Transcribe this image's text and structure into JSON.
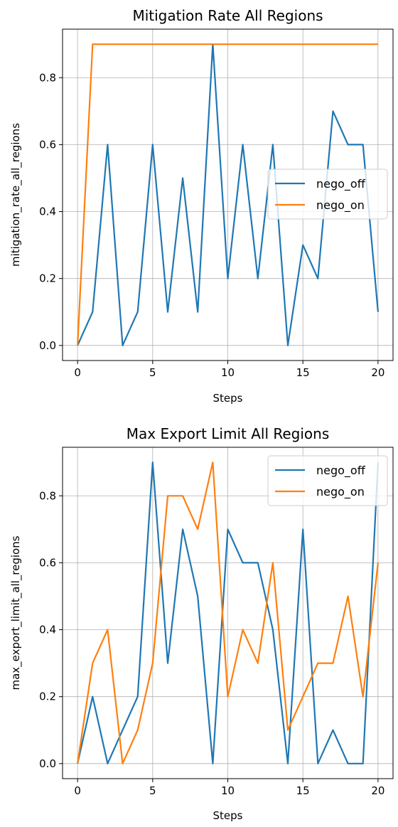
{
  "chart_data": [
    {
      "type": "line",
      "title": "Mitigation Rate All Regions",
      "xlabel": "Steps",
      "ylabel": "mitigation_rate_all_regions",
      "xlim": [
        -1,
        21
      ],
      "ylim": [
        -0.045,
        0.945
      ],
      "xticks": [
        0,
        5,
        10,
        15,
        20
      ],
      "xtick_labels": [
        "0",
        "5",
        "10",
        "15",
        "20"
      ],
      "yticks": [
        0.0,
        0.2,
        0.4,
        0.6,
        0.8
      ],
      "ytick_labels": [
        "0.0",
        "0.2",
        "0.4",
        "0.6",
        "0.8"
      ],
      "grid": true,
      "legend": "center-right",
      "x": [
        0,
        1,
        2,
        3,
        4,
        5,
        6,
        7,
        8,
        9,
        10,
        11,
        12,
        13,
        14,
        15,
        16,
        17,
        18,
        19,
        20
      ],
      "series": [
        {
          "name": "nego_off",
          "color": "#1f77b4",
          "values": [
            0.0,
            0.1,
            0.6,
            0.0,
            0.1,
            0.6,
            0.1,
            0.5,
            0.1,
            0.9,
            0.2,
            0.6,
            0.2,
            0.6,
            0.0,
            0.3,
            0.2,
            0.7,
            0.6,
            0.6,
            0.1
          ]
        },
        {
          "name": "nego_on",
          "color": "#ff7f0e",
          "values": [
            0.0,
            0.9,
            0.9,
            0.9,
            0.9,
            0.9,
            0.9,
            0.9,
            0.9,
            0.9,
            0.9,
            0.9,
            0.9,
            0.9,
            0.9,
            0.9,
            0.9,
            0.9,
            0.9,
            0.9,
            0.9
          ]
        }
      ]
    },
    {
      "type": "line",
      "title": "Max Export Limit All Regions",
      "xlabel": "Steps",
      "ylabel": "max_export_limit_all_regions",
      "xlim": [
        -1,
        21
      ],
      "ylim": [
        -0.045,
        0.945
      ],
      "xticks": [
        0,
        5,
        10,
        15,
        20
      ],
      "xtick_labels": [
        "0",
        "5",
        "10",
        "15",
        "20"
      ],
      "yticks": [
        0.0,
        0.2,
        0.4,
        0.6,
        0.8
      ],
      "ytick_labels": [
        "0.0",
        "0.2",
        "0.4",
        "0.6",
        "0.8"
      ],
      "grid": true,
      "legend": "top-right",
      "x": [
        0,
        1,
        2,
        3,
        4,
        5,
        6,
        7,
        8,
        9,
        10,
        11,
        12,
        13,
        14,
        15,
        16,
        17,
        18,
        19,
        20
      ],
      "series": [
        {
          "name": "nego_off",
          "color": "#1f77b4",
          "values": [
            0.0,
            0.2,
            0.0,
            0.1,
            0.2,
            0.9,
            0.3,
            0.7,
            0.5,
            0.0,
            0.7,
            0.6,
            0.6,
            0.4,
            0.0,
            0.7,
            0.0,
            0.1,
            0.0,
            0.0,
            0.9
          ]
        },
        {
          "name": "nego_on",
          "color": "#ff7f0e",
          "values": [
            0.0,
            0.3,
            0.4,
            0.0,
            0.1,
            0.3,
            0.8,
            0.8,
            0.7,
            0.9,
            0.2,
            0.4,
            0.3,
            0.6,
            0.1,
            0.2,
            0.3,
            0.3,
            0.5,
            0.2,
            0.6
          ]
        }
      ]
    }
  ]
}
